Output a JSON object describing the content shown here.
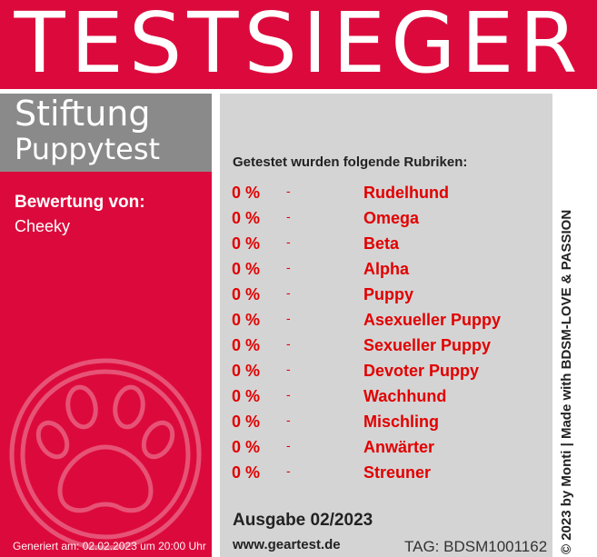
{
  "header": {
    "title": "TESTSIEGER"
  },
  "org": {
    "line1": "Stiftung",
    "line2": "Puppytest"
  },
  "review": {
    "label": "Bewertung von:",
    "name": "Cheeky"
  },
  "rubrics": {
    "heading": "Getestet wurden folgende Rubriken:",
    "items": [
      {
        "percent": "0 %",
        "separator": "-",
        "name": "Rudelhund"
      },
      {
        "percent": "0 %",
        "separator": "-",
        "name": "Omega"
      },
      {
        "percent": "0 %",
        "separator": "-",
        "name": "Beta"
      },
      {
        "percent": "0 %",
        "separator": "-",
        "name": "Alpha"
      },
      {
        "percent": "0 %",
        "separator": "-",
        "name": "Puppy"
      },
      {
        "percent": "0 %",
        "separator": "-",
        "name": "Asexueller Puppy"
      },
      {
        "percent": "0 %",
        "separator": "-",
        "name": "Sexueller Puppy"
      },
      {
        "percent": "0 %",
        "separator": "-",
        "name": "Devoter Puppy"
      },
      {
        "percent": "0 %",
        "separator": "-",
        "name": "Wachhund"
      },
      {
        "percent": "0 %",
        "separator": "-",
        "name": "Mischling"
      },
      {
        "percent": "0 %",
        "separator": "-",
        "name": "Anwärter"
      },
      {
        "percent": "0 %",
        "separator": "-",
        "name": "Streuner"
      }
    ]
  },
  "footer": {
    "edition": "Ausgabe 02/2023",
    "website": "www.geartest.de",
    "tag": "TAG: BDSM1001162",
    "generated": "Generiert am: 02.02.2023 um 20:00 Uhr",
    "copyright": "© 2023 by Monti | Made with BDSM-LOVE & PASSION"
  },
  "colors": {
    "accent": "#dc0a3c",
    "org_box": "#8a8a8a",
    "panel": "#d4d4d4",
    "rubric_text": "#e10000"
  },
  "icons": {
    "paw": "paw-icon"
  }
}
